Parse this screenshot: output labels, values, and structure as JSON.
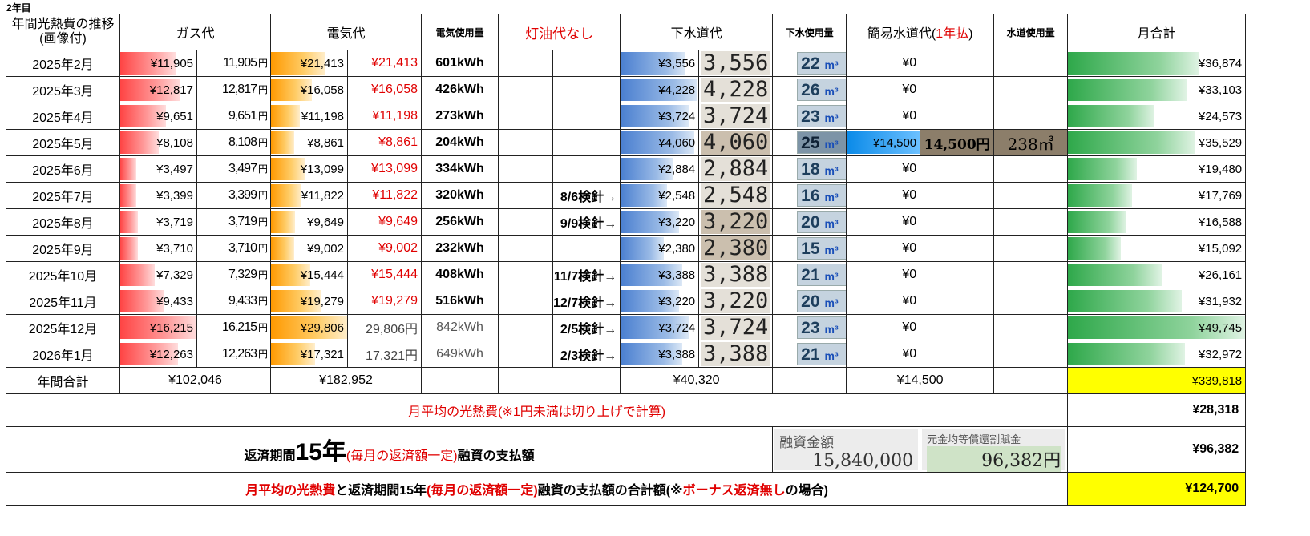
{
  "caption": "2年目",
  "headers": {
    "period": "年間光熱費の推移(画像付)",
    "gas": "ガス代",
    "electric": "電気代",
    "electric_usage": "電気使用量",
    "kerosene": "灯油代なし",
    "sewer": "下水道代",
    "sewer_usage": "下水使用量",
    "water_pre": "簡易水道代(",
    "water_mid": "1年払",
    "water_post": ")",
    "water_usage": "水道使用量",
    "monthly_total": "月合計"
  },
  "rows": [
    {
      "month": "2025年2月",
      "gas": "¥11,905",
      "gas_img": "11,905",
      "gas_pct": 0.73,
      "elec": "¥21,413",
      "elec_img": "¥21,413",
      "elec_pct": 0.72,
      "kwh": "601kWh",
      "note": "",
      "sewer": "¥3,556",
      "sewer_img": "3,556",
      "sewer_pct": 0.83,
      "sewer_m3": "22",
      "water": "¥0",
      "total": "¥36,874",
      "total_pct": 0.74
    },
    {
      "month": "2025年3月",
      "gas": "¥12,817",
      "gas_img": "12,817",
      "gas_pct": 0.79,
      "elec": "¥16,058",
      "elec_img": "¥16,058",
      "elec_pct": 0.54,
      "kwh": "426kWh",
      "note": "",
      "sewer": "¥4,228",
      "sewer_img": "4,228",
      "sewer_pct": 0.99,
      "sewer_m3": "26",
      "water": "¥0",
      "total": "¥33,103",
      "total_pct": 0.67
    },
    {
      "month": "2025年4月",
      "gas": "¥9,651",
      "gas_img": "9,651",
      "gas_pct": 0.6,
      "elec": "¥11,198",
      "elec_img": "¥11,198",
      "elec_pct": 0.38,
      "kwh": "273kWh",
      "note": "",
      "sewer": "¥3,724",
      "sewer_img": "3,724",
      "sewer_pct": 0.87,
      "sewer_m3": "23",
      "water": "¥0",
      "total": "¥24,573",
      "total_pct": 0.49
    },
    {
      "month": "2025年5月",
      "gas": "¥8,108",
      "gas_img": "8,108",
      "gas_pct": 0.5,
      "elec": "¥8,861",
      "elec_img": "¥8,861",
      "elec_pct": 0.3,
      "kwh": "204kWh",
      "note": "",
      "sewer": "¥4,060",
      "sewer_img": "4,060",
      "sewer_pct": 0.95,
      "sewer_m3": "25",
      "water": "¥14,500",
      "water_img": "14,500円",
      "water_usage": "238㎥",
      "total": "¥35,529",
      "total_pct": 0.72
    },
    {
      "month": "2025年6月",
      "gas": "¥3,497",
      "gas_img": "3,497",
      "gas_pct": 0.21,
      "elec": "¥13,099",
      "elec_img": "¥13,099",
      "elec_pct": 0.44,
      "kwh": "334kWh",
      "note": "",
      "sewer": "¥2,884",
      "sewer_img": "2,884",
      "sewer_pct": 0.67,
      "sewer_m3": "18",
      "water": "¥0",
      "total": "¥19,480",
      "total_pct": 0.39
    },
    {
      "month": "2025年7月",
      "gas": "¥3,399",
      "gas_img": "3,399",
      "gas_pct": 0.21,
      "elec": "¥11,822",
      "elec_img": "¥11,822",
      "elec_pct": 0.4,
      "kwh": "320kWh",
      "note": "8/6検針→",
      "sewer": "¥2,548",
      "sewer_img": "2,548",
      "sewer_pct": 0.6,
      "sewer_m3": "16",
      "water": "¥0",
      "total": "¥17,769",
      "total_pct": 0.36
    },
    {
      "month": "2025年8月",
      "gas": "¥3,719",
      "gas_img": "3,719",
      "gas_pct": 0.23,
      "elec": "¥9,649",
      "elec_img": "¥9,649",
      "elec_pct": 0.32,
      "kwh": "256kWh",
      "note": "9/9検針→",
      "sewer": "¥3,220",
      "sewer_img": "3,220",
      "sewer_pct": 0.75,
      "sewer_m3": "20",
      "water": "¥0",
      "total": "¥16,588",
      "total_pct": 0.33
    },
    {
      "month": "2025年9月",
      "gas": "¥3,710",
      "gas_img": "3,710",
      "gas_pct": 0.23,
      "elec": "¥9,002",
      "elec_img": "¥9,002",
      "elec_pct": 0.3,
      "kwh": "232kWh",
      "note": "",
      "sewer": "¥2,380",
      "sewer_img": "2,380",
      "sewer_pct": 0.56,
      "sewer_m3": "15",
      "water": "¥0",
      "total": "¥15,092",
      "total_pct": 0.3
    },
    {
      "month": "2025年10月",
      "gas": "¥7,329",
      "gas_img": "7,329",
      "gas_pct": 0.45,
      "elec": "¥15,444",
      "elec_img": "¥15,444",
      "elec_pct": 0.52,
      "kwh": "408kWh",
      "note": "11/7検針→",
      "sewer": "¥3,388",
      "sewer_img": "3,388",
      "sewer_pct": 0.79,
      "sewer_m3": "21",
      "water": "¥0",
      "total": "¥26,161",
      "total_pct": 0.53
    },
    {
      "month": "2025年11月",
      "gas": "¥9,433",
      "gas_img": "9,433",
      "gas_pct": 0.58,
      "elec": "¥19,279",
      "elec_img": "¥19,279",
      "elec_pct": 0.65,
      "kwh": "516kWh",
      "note": "12/7検針→",
      "sewer": "¥3,220",
      "sewer_img": "3,220",
      "sewer_pct": 0.75,
      "sewer_m3": "20",
      "water": "¥0",
      "total": "¥31,932",
      "total_pct": 0.64
    },
    {
      "month": "2025年12月",
      "gas": "¥16,215",
      "gas_img": "16,215",
      "gas_pct": 1.0,
      "elec": "¥29,806",
      "elec_img": "29,806円",
      "elec_pct": 1.0,
      "kwh": "842kWh",
      "kwh_gray": true,
      "note": "2/5検針→",
      "sewer": "¥3,724",
      "sewer_img": "3,724",
      "sewer_pct": 0.87,
      "sewer_m3": "23",
      "water": "¥0",
      "total": "¥49,745",
      "total_pct": 1.0
    },
    {
      "month": "2026年1月",
      "gas": "¥12,263",
      "gas_img": "12,263",
      "gas_pct": 0.76,
      "elec": "¥17,321",
      "elec_img": "17,321円",
      "elec_pct": 0.58,
      "kwh": "649kWh",
      "kwh_gray": true,
      "note": "2/3検針→",
      "sewer": "¥3,388",
      "sewer_img": "3,388",
      "sewer_pct": 0.79,
      "sewer_m3": "21",
      "water": "¥0",
      "total": "¥32,972",
      "total_pct": 0.66
    }
  ],
  "totals": {
    "label": "年間合計",
    "gas": "¥102,046",
    "elec": "¥182,952",
    "sewer": "¥40,320",
    "water": "¥14,500",
    "grand": "¥339,818"
  },
  "unit_yen": "円",
  "unit_m3": "m³",
  "summary": {
    "avg_label": "月平均の光熱費(※1円未満は切り上げで計算)",
    "avg_value": "¥28,318",
    "repay_a": "返済期間",
    "repay_years": "15年",
    "repay_b": "(毎月の返済額一定)",
    "repay_c": "融資の支払額",
    "loan_label": "融資金額",
    "loan_value": "15,840,000",
    "equal_label": "元金均等償還割賦金",
    "equal_value": "96,382円",
    "repay_value": "¥96,382",
    "final_a": "月平均の光熱費",
    "final_b": "と返済期間15年",
    "final_c": "(毎月の返済額一定)",
    "final_d": "融資の支払額の合計額(※",
    "final_e": "ボーナス返済無し",
    "final_f": "の場合)",
    "final_value": "¥124,700"
  }
}
